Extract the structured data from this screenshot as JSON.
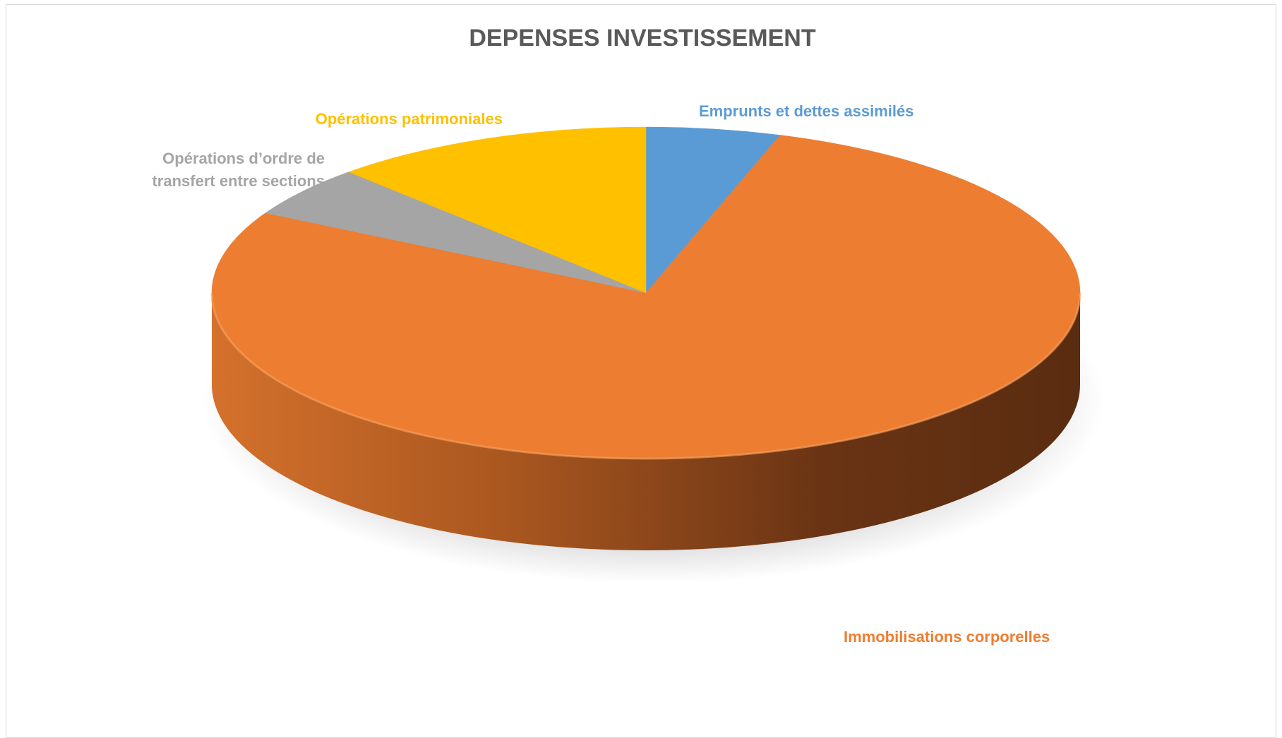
{
  "chart_data": {
    "type": "pie",
    "title": "DEPENSES INVESTISSEMENT",
    "slices": [
      {
        "label": "Emprunts et dettes assimilés",
        "value": 5,
        "color": "#5B9BD5"
      },
      {
        "label": "Immobilisations corporelles",
        "value": 78,
        "color": "#ED7D31"
      },
      {
        "label": "Opérations d’ordre de transfert entre sections",
        "label_lines": [
          "Opérations d’ordre de",
          "transfert entre sections"
        ],
        "value": 5,
        "color": "#A5A5A5"
      },
      {
        "label": "Opérations patrimoniales",
        "value": 12,
        "color": "#FFC000"
      }
    ],
    "style": "3d",
    "legend": "none",
    "data_labels": "category-name"
  }
}
